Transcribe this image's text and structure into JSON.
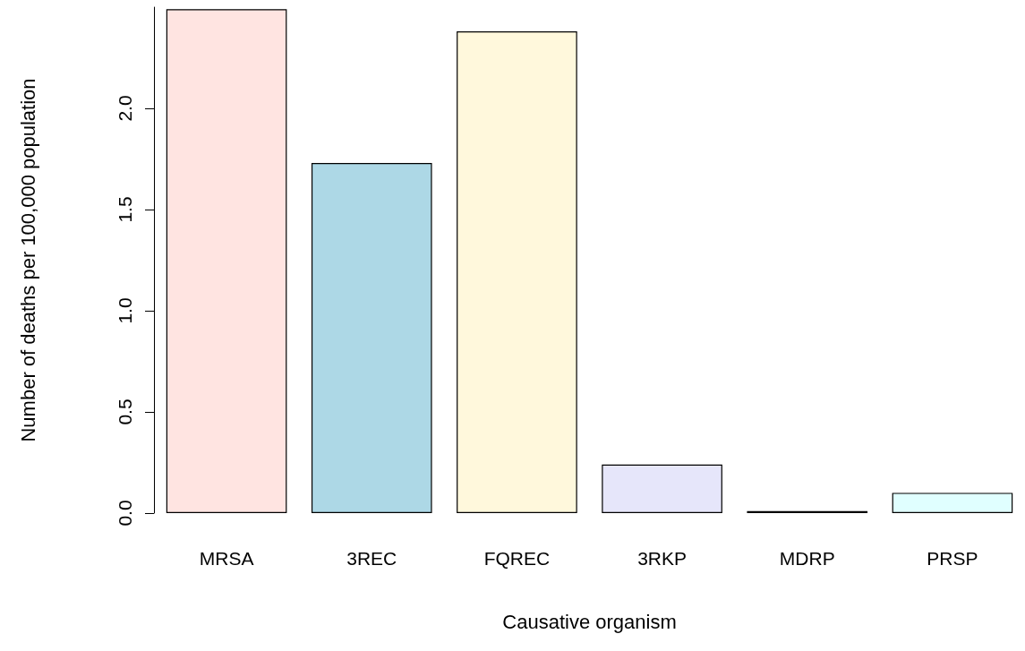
{
  "chart_data": {
    "type": "bar",
    "xlabel": "Causative organism",
    "ylabel": "Number of deaths per 100,000 population",
    "categories": [
      "MRSA",
      "3REC",
      "FQREC",
      "3RKP",
      "MDRP",
      "PRSP"
    ],
    "values": [
      2.49,
      1.73,
      2.38,
      0.24,
      0.01,
      0.1
    ],
    "colors": [
      "#ffe4e1",
      "#add8e6",
      "#fff8dc",
      "#e6e6fa",
      "#006400",
      "#e0ffff"
    ],
    "ylim": [
      0,
      2.5
    ],
    "yticks": [
      {
        "value": 0,
        "label": "0.0"
      },
      {
        "value": 0.5,
        "label": "0.5"
      },
      {
        "value": 1,
        "label": "1.0"
      },
      {
        "value": 1.5,
        "label": "1.5"
      },
      {
        "value": 2,
        "label": "2.0"
      }
    ],
    "grid": false
  }
}
